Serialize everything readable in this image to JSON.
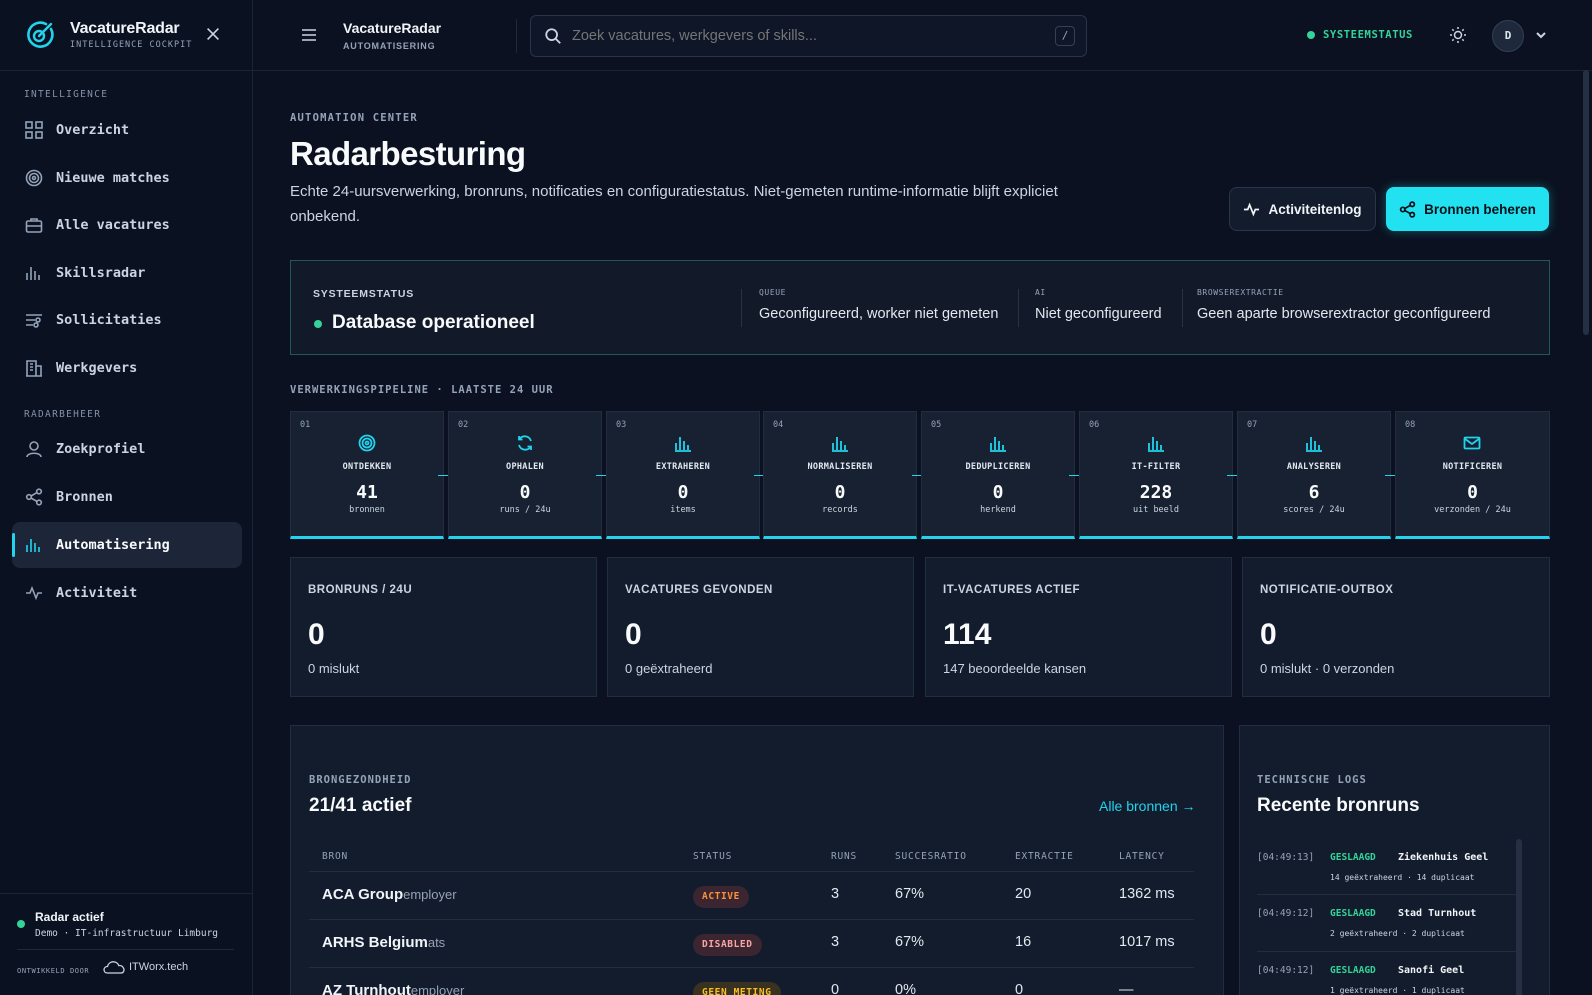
{
  "brand": {
    "name": "VacatureRadar",
    "sub": "INTELLIGENCE COCKPIT"
  },
  "sidebar": {
    "section_intel": "INTELLIGENCE",
    "section_radar": "RADARBEHEER",
    "items": [
      {
        "label": "Overzicht",
        "icon": "grid-icon"
      },
      {
        "label": "Nieuwe matches",
        "icon": "target-icon"
      },
      {
        "label": "Alle vacatures",
        "icon": "briefcase-icon"
      },
      {
        "label": "Skillsradar",
        "icon": "bars-icon"
      },
      {
        "label": "Sollicitaties",
        "icon": "sliders-icon"
      },
      {
        "label": "Werkgevers",
        "icon": "building-icon"
      },
      {
        "label": "Zoekprofiel",
        "icon": "user-icon"
      },
      {
        "label": "Bronnen",
        "icon": "share-icon"
      },
      {
        "label": "Automatisering",
        "icon": "bars-icon",
        "active": true
      },
      {
        "label": "Activiteit",
        "icon": "pulse-icon"
      }
    ],
    "footer": {
      "status": "Radar actief",
      "profile": "Demo · IT-infrastructuur Limburg",
      "dev_by": "ONTWIKKELD DOOR",
      "dev_logo": "ITWorx.tech"
    }
  },
  "header": {
    "title": "VacatureRadar",
    "sub": "AUTOMATISERING",
    "search_placeholder": "Zoek vacatures, werkgevers of skills...",
    "shortcut": "/",
    "system_status": "SYSTEEMSTATUS",
    "avatar": "D"
  },
  "page": {
    "eyebrow": "AUTOMATION CENTER",
    "title": "Radarbesturing",
    "description": "Echte 24-uursverwerking, bronruns, notificaties en configuratiestatus. Niet-gemeten runtime-informatie blijft expliciet onbekend.",
    "btn_log": "Activiteitenlog",
    "btn_sources": "Bronnen beheren"
  },
  "status_panel": {
    "label": "SYSTEEMSTATUS",
    "value": "Database operationeel",
    "queue_label": "QUEUE",
    "queue_value": "Geconfigureerd, worker niet gemeten",
    "ai_label": "AI",
    "ai_value": "Niet geconfigureerd",
    "browser_label": "BROWSEREXTRACTIE",
    "browser_value": "Geen aparte browserextractor geconfigureerd"
  },
  "pipeline": {
    "label": "VERWERKINGSPIPELINE · LAATSTE 24 UUR",
    "stages": [
      {
        "num": "01",
        "name": "ONTDEKKEN",
        "value": "41",
        "unit": "bronnen",
        "icon": "target-icon"
      },
      {
        "num": "02",
        "name": "OPHALEN",
        "value": "0",
        "unit": "runs / 24u",
        "icon": "refresh-icon"
      },
      {
        "num": "03",
        "name": "EXTRAHEREN",
        "value": "0",
        "unit": "items",
        "icon": "bars-icon"
      },
      {
        "num": "04",
        "name": "NORMALISEREN",
        "value": "0",
        "unit": "records",
        "icon": "bars-icon"
      },
      {
        "num": "05",
        "name": "DEDUPLICEREN",
        "value": "0",
        "unit": "herkend",
        "icon": "bars-icon"
      },
      {
        "num": "06",
        "name": "IT-FILTER",
        "value": "228",
        "unit": "uit beeld",
        "icon": "bars-icon"
      },
      {
        "num": "07",
        "name": "ANALYSEREN",
        "value": "6",
        "unit": "scores / 24u",
        "icon": "bars-icon"
      },
      {
        "num": "08",
        "name": "NOTIFICEREN",
        "value": "0",
        "unit": "verzonden / 24u",
        "icon": "mail-icon"
      }
    ]
  },
  "kpis": [
    {
      "label": "BRONRUNS / 24U",
      "value": "0",
      "sub": "0 mislukt"
    },
    {
      "label": "VACATURES GEVONDEN",
      "value": "0",
      "sub": "0 geëxtraheerd"
    },
    {
      "label": "IT-VACATURES ACTIEF",
      "value": "114",
      "sub": "147 beoordeelde kansen"
    },
    {
      "label": "NOTIFICATIE-OUTBOX",
      "value": "0",
      "sub": "0 mislukt · 0 verzonden"
    }
  ],
  "health": {
    "eyebrow": "BRONGEZONDHEID",
    "title": "21/41 actief",
    "link": "Alle bronnen →",
    "columns": [
      "BRON",
      "STATUS",
      "RUNS",
      "SUCCESRATIO",
      "EXTRACTIE",
      "LATENCY"
    ],
    "rows": [
      {
        "name": "ACA Group",
        "type": "employer",
        "status": "ACTIVE",
        "runs": "3",
        "ratio": "67%",
        "extract": "20",
        "latency": "1362 ms"
      },
      {
        "name": "ARHS Belgium",
        "type": "ats",
        "status": "DISABLED",
        "runs": "3",
        "ratio": "67%",
        "extract": "16",
        "latency": "1017 ms"
      },
      {
        "name": "AZ Turnhout",
        "type": "employer",
        "status": "GEEN METING",
        "runs": "0",
        "ratio": "0%",
        "extract": "0",
        "latency": "—"
      }
    ]
  },
  "logs": {
    "eyebrow": "TECHNISCHE LOGS",
    "title": "Recente bronruns",
    "entries": [
      {
        "time": "[04:49:13]",
        "status": "GESLAAGD",
        "source": "Ziekenhuis Geel",
        "detail": "14 geëxtraheerd · 14 duplicaat"
      },
      {
        "time": "[04:49:12]",
        "status": "GESLAAGD",
        "source": "Stad Turnhout",
        "detail": "2 geëxtraheerd · 2 duplicaat"
      },
      {
        "time": "[04:49:12]",
        "status": "GESLAAGD",
        "source": "Sanofi Geel",
        "detail": "1 geëxtraheerd · 1 duplicaat"
      }
    ]
  },
  "colors": {
    "accent": "#22d3ee",
    "success": "#34d399",
    "background": "#0b1120"
  }
}
